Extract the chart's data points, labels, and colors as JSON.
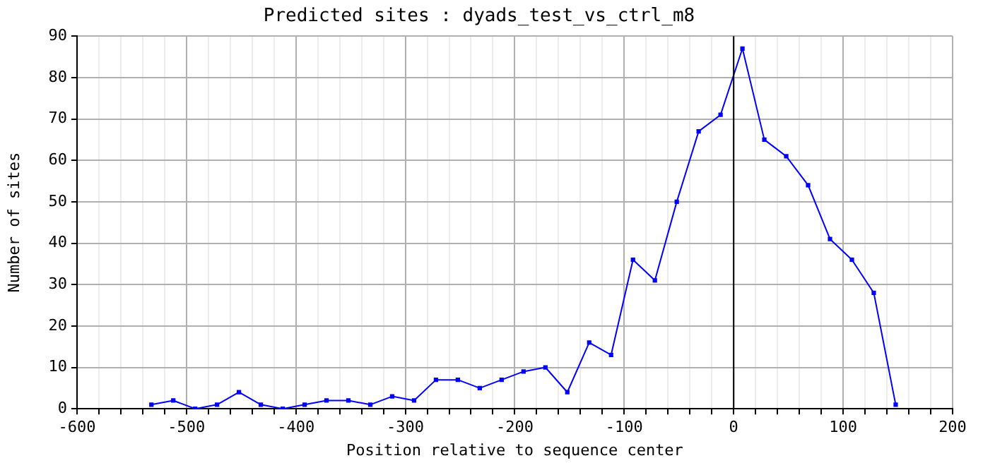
{
  "chart_data": {
    "type": "line",
    "title": "Predicted sites : dyads_test_vs_ctrl_m8",
    "xlabel": "Position relative to sequence center",
    "ylabel": "Number of sites",
    "x": [
      -532,
      -512,
      -492,
      -472,
      -452,
      -432,
      -412,
      -392,
      -372,
      -352,
      -332,
      -312,
      -292,
      -272,
      -252,
      -232,
      -212,
      -192,
      -172,
      -152,
      -132,
      -112,
      -92,
      -72,
      -52,
      -32,
      -12,
      8,
      28,
      48,
      68,
      88,
      108,
      128,
      148
    ],
    "series": [
      {
        "color": "#0000ff",
        "values": [
          1,
          2,
          0,
          1,
          4,
          1,
          0,
          1,
          2,
          2,
          1,
          3,
          2,
          7,
          7,
          5,
          7,
          9,
          10,
          4,
          16,
          13,
          36,
          31,
          50,
          67,
          71,
          87,
          65,
          61,
          54,
          41,
          36,
          28,
          1
        ]
      }
    ],
    "xlim": [
      -600,
      200
    ],
    "xticks": [
      -600,
      {
        "value": -580,
        "label": null
      },
      {
        "value": -560,
        "label": null
      },
      {
        "value": -540,
        "label": null
      },
      {
        "value": -520,
        "label": null
      },
      -500,
      {
        "value": -480,
        "label": null
      },
      {
        "value": -460,
        "label": null
      },
      {
        "value": -440,
        "label": null
      },
      {
        "value": -420,
        "label": null
      },
      -400,
      {
        "value": -380,
        "label": null
      },
      {
        "value": -360,
        "label": null
      },
      {
        "value": -340,
        "label": null
      },
      {
        "value": -320,
        "label": null
      },
      -300,
      {
        "value": -280,
        "label": null
      },
      {
        "value": -260,
        "label": null
      },
      {
        "value": -240,
        "label": null
      },
      {
        "value": -220,
        "label": null
      },
      -200,
      {
        "value": -180,
        "label": null
      },
      {
        "value": -160,
        "label": null
      },
      {
        "value": -140,
        "label": null
      },
      {
        "value": -120,
        "label": null
      },
      -100,
      {
        "value": -80,
        "label": null
      },
      {
        "value": -60,
        "label": null
      },
      {
        "value": -40,
        "label": null
      },
      {
        "value": -20,
        "label": null
      },
      0,
      {
        "value": 20,
        "label": null
      },
      {
        "value": 40,
        "label": null
      },
      {
        "value": 60,
        "label": null
      },
      {
        "value": 80,
        "label": null
      },
      100,
      {
        "value": 120,
        "label": null
      },
      {
        "value": 140,
        "label": null
      },
      {
        "value": 160,
        "label": null
      },
      {
        "value": 180,
        "label": null
      },
      200
    ],
    "ylim": [
      0,
      90
    ],
    "yticks": [
      0,
      10,
      20,
      30,
      40,
      50,
      60,
      70,
      80,
      90
    ],
    "ref_lines": [
      {
        "axis": "x",
        "value": 0,
        "color": "#000000"
      }
    ],
    "grid": true,
    "legend": false,
    "marker": "square",
    "line_style": "solid"
  }
}
